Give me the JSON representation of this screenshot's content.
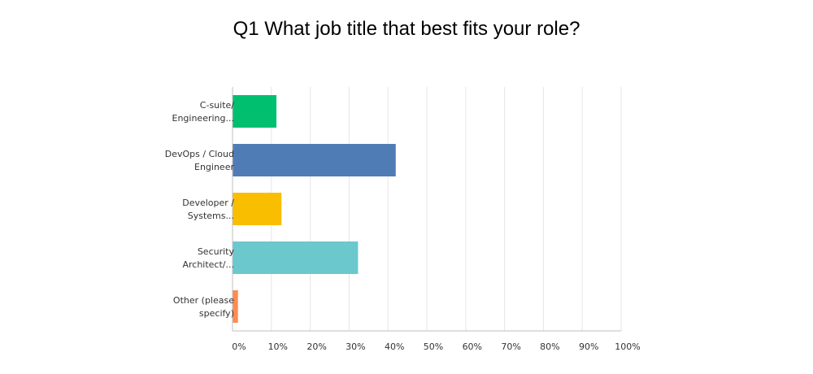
{
  "chart_data": {
    "type": "bar",
    "orientation": "horizontal",
    "title": "Q1 What job title that best fits your role?",
    "categories": [
      [
        "C-suite/",
        "Engineering..."
      ],
      [
        "DevOps / Cloud",
        "Engineer"
      ],
      [
        "Developer /",
        "Systems..."
      ],
      [
        "Security",
        "Architect/..."
      ],
      [
        "Other (please",
        "specify)"
      ]
    ],
    "values": [
      11.3,
      42.0,
      12.6,
      32.3,
      1.4
    ],
    "colors": [
      "#00bf6f",
      "#507cb6",
      "#f9be00",
      "#6bc8cd",
      "#ff8b4f"
    ],
    "xlim": [
      0,
      100
    ],
    "x_ticks": [
      "0%",
      "10%",
      "20%",
      "30%",
      "40%",
      "50%",
      "60%",
      "70%",
      "80%",
      "90%",
      "100%"
    ],
    "grid": true,
    "legend": "none"
  }
}
